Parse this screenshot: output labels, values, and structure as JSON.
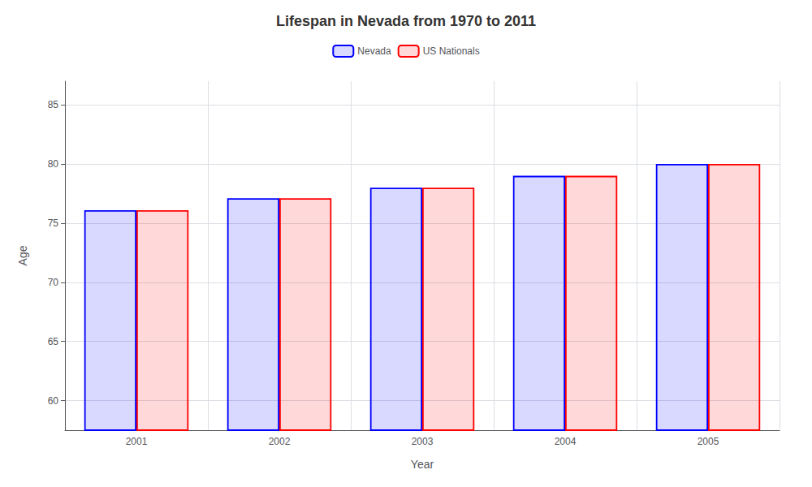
{
  "chart_data": {
    "type": "bar",
    "title": "Lifespan in Nevada from 1970 to 2011",
    "xlabel": "Year",
    "ylabel": "Age",
    "categories": [
      "2001",
      "2002",
      "2003",
      "2004",
      "2005"
    ],
    "series": [
      {
        "name": "Nevada",
        "color": "#0000ff",
        "values": [
          76.1,
          77.1,
          78.0,
          79.0,
          80.0
        ]
      },
      {
        "name": "US Nationals",
        "color": "#ff0000",
        "values": [
          76.1,
          77.1,
          78.0,
          79.0,
          80.0
        ]
      }
    ],
    "ylim": [
      57.5,
      87
    ],
    "yticks": [
      60,
      65,
      70,
      75,
      80,
      85
    ],
    "grid": true,
    "legend": "top"
  }
}
